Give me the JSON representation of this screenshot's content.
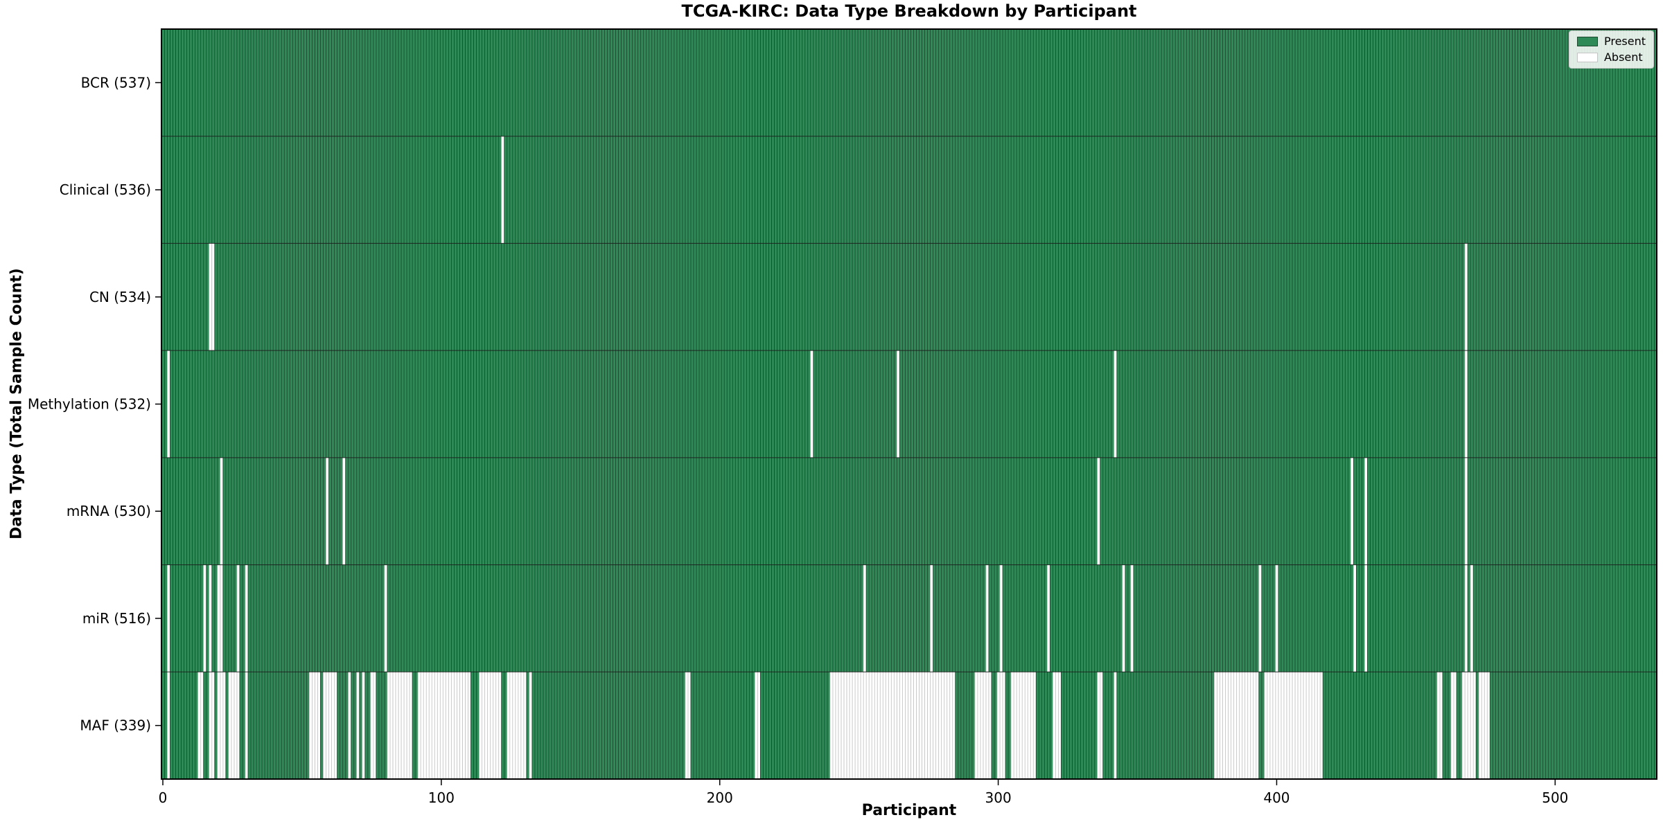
{
  "chart_data": {
    "type": "heatmap",
    "title": "TCGA-KIRC: Data Type Breakdown by Participant",
    "xlabel": "Participant",
    "ylabel": "Data Type (Total Sample Count)",
    "n_participants": 537,
    "x_ticks": [
      0,
      100,
      200,
      300,
      400,
      500
    ],
    "grid": false,
    "legend": {
      "position": "upper right",
      "entries": [
        {
          "label": "Present",
          "color": "#2e8b57"
        },
        {
          "label": "Absent",
          "color": "#ffffff"
        }
      ]
    },
    "colors": {
      "present": "#2e8b57",
      "present_edge": "#1d4a2f",
      "absent": "#ffffff",
      "absent_edge": "#c4c4c4",
      "spine": "#000000",
      "row_separator": "#1a1a1a"
    },
    "rows": [
      {
        "name": "BCR",
        "label": "BCR (537)",
        "total": 537,
        "absent": [],
        "absent_ranges": []
      },
      {
        "name": "Clinical",
        "label": "Clinical (536)",
        "total": 536,
        "absent": [
          122
        ],
        "absent_ranges": []
      },
      {
        "name": "CN",
        "label": "CN (534)",
        "total": 534,
        "absent": [
          17,
          18,
          468
        ],
        "absent_ranges": []
      },
      {
        "name": "Methylation",
        "label": "Methylation (532)",
        "total": 532,
        "absent": [
          2,
          233,
          264,
          342,
          468
        ],
        "absent_ranges": []
      },
      {
        "name": "mRNA",
        "label": "mRNA (530)",
        "total": 530,
        "absent": [
          21,
          59,
          65,
          336,
          427,
          432,
          468
        ],
        "absent_ranges": []
      },
      {
        "name": "miR",
        "label": "miR (516)",
        "total": 516,
        "absent": [
          2,
          15,
          17,
          20,
          21,
          27,
          30,
          80,
          252,
          276,
          296,
          301,
          318,
          345,
          348,
          394,
          400,
          428,
          432,
          468,
          470
        ],
        "absent_ranges": []
      },
      {
        "name": "MAF",
        "label": "MAF (339)",
        "total": 339,
        "absent": [],
        "absent_ranges": [
          [
            2,
            3
          ],
          [
            13,
            15
          ],
          [
            17,
            19
          ],
          [
            20,
            23
          ],
          [
            24,
            28
          ],
          [
            30,
            31
          ],
          [
            53,
            57
          ],
          [
            58,
            63
          ],
          [
            67,
            68
          ],
          [
            70,
            71
          ],
          [
            72,
            73
          ],
          [
            75,
            77
          ],
          [
            81,
            90
          ],
          [
            92,
            111
          ],
          [
            114,
            122
          ],
          [
            124,
            131
          ],
          [
            132,
            133
          ],
          [
            188,
            190
          ],
          [
            213,
            215
          ],
          [
            240,
            285
          ],
          [
            292,
            298
          ],
          [
            300,
            303
          ],
          [
            305,
            314
          ],
          [
            320,
            323
          ],
          [
            336,
            338
          ],
          [
            342,
            343
          ],
          [
            378,
            394
          ],
          [
            396,
            417
          ],
          [
            458,
            460
          ],
          [
            463,
            465
          ],
          [
            467,
            472
          ],
          [
            473,
            477
          ]
        ]
      }
    ]
  }
}
